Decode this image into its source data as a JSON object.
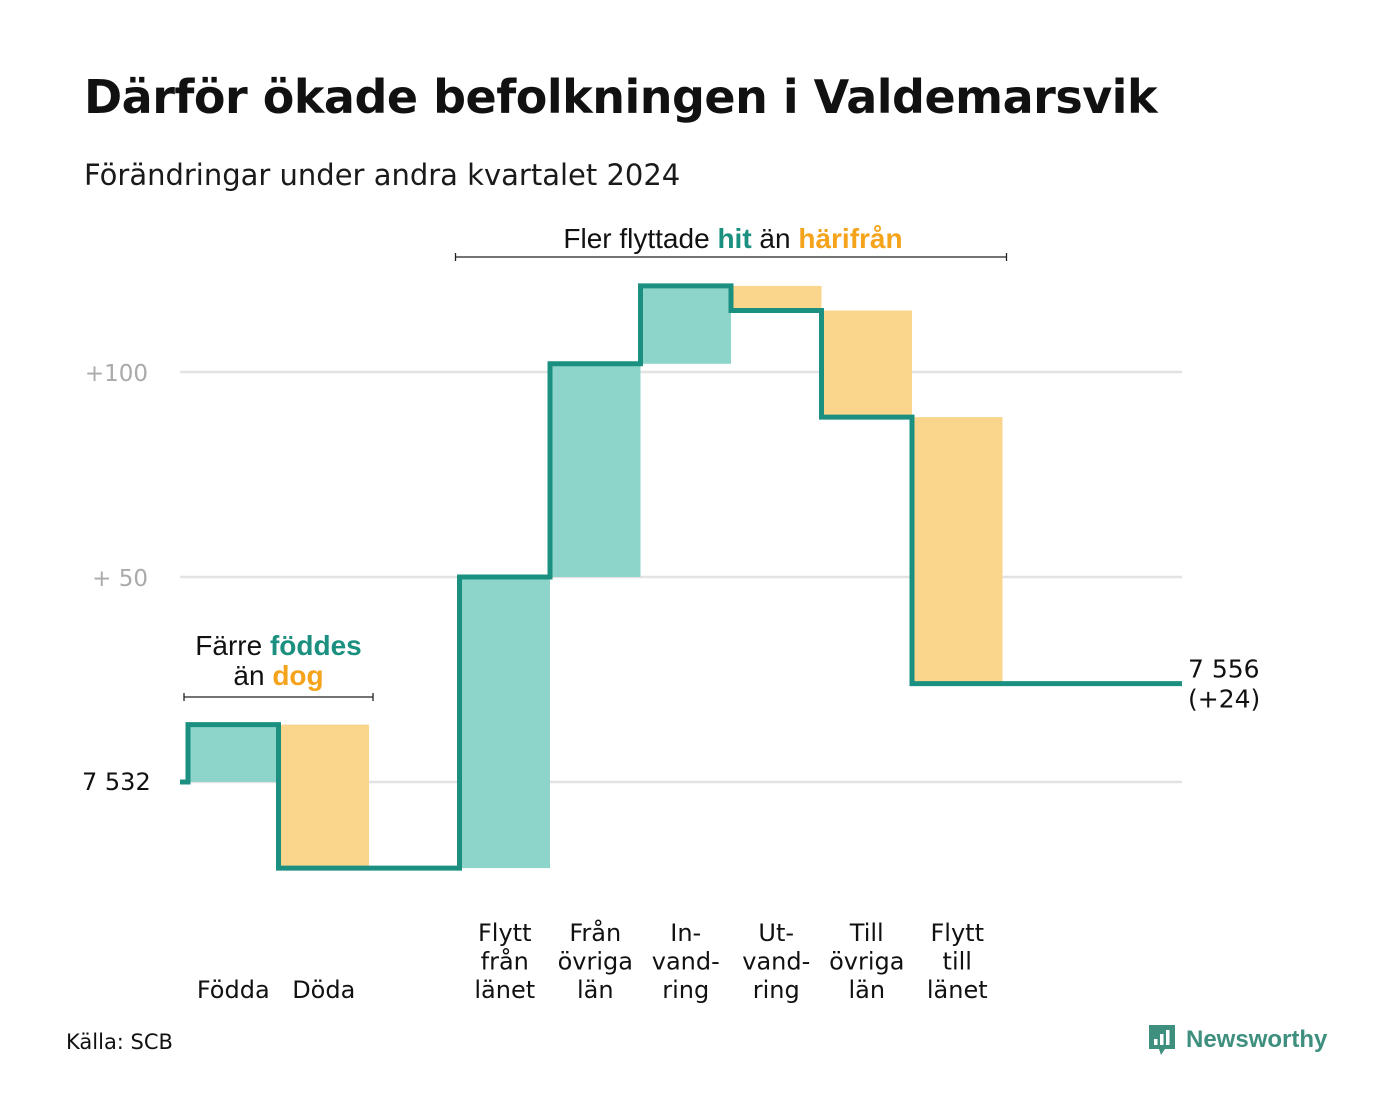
{
  "title": "Därför ökade befolkningen i Valdemarsvik",
  "subtitle": "Förändringar under andra kvartalet 2024",
  "source": "Källa: SCB",
  "brand": {
    "name": "Newsworthy",
    "icon": "newsworthy-logo-icon"
  },
  "colors": {
    "inflow": "#8dd5cb",
    "outflow": "#fad68c",
    "line": "#1b9080",
    "hit": "#1b9080",
    "harifran": "#f5a31a",
    "grid": "#e3e3e3",
    "tick": "#aaaaaa"
  },
  "chart_data": {
    "type": "waterfall",
    "base_value": 7532,
    "base_label": "7  532",
    "final_value": 7556,
    "final_labels": [
      "7 556",
      "(+24)"
    ],
    "ylim": [
      -21,
      123
    ],
    "yticks": [
      {
        "value": 100,
        "label": "+100"
      },
      {
        "value": 50,
        "label": "+  50"
      },
      {
        "value": 0,
        "label": ""
      }
    ],
    "steps": [
      {
        "name": "Födda",
        "label_lines": [
          "Födda"
        ],
        "delta": 14,
        "kind": "in"
      },
      {
        "name": "Döda",
        "label_lines": [
          "Döda"
        ],
        "delta": -35,
        "kind": "out"
      },
      {
        "name": "Flytt från länet",
        "label_lines": [
          "Flytt",
          "från",
          "länet"
        ],
        "delta": 71,
        "kind": "in"
      },
      {
        "name": "Från övriga län",
        "label_lines": [
          "Från",
          "övriga",
          "län"
        ],
        "delta": 52,
        "kind": "in"
      },
      {
        "name": "Invandring",
        "label_lines": [
          "In-",
          "vand-",
          "ring"
        ],
        "delta": 19,
        "kind": "in"
      },
      {
        "name": "Utvandring",
        "label_lines": [
          "Ut-",
          "vand-",
          "ring"
        ],
        "delta": -6,
        "kind": "out"
      },
      {
        "name": "Till övriga län",
        "label_lines": [
          "Till",
          "övriga",
          "län"
        ],
        "delta": -26,
        "kind": "out"
      },
      {
        "name": "Flytt till länet",
        "label_lines": [
          "Flytt",
          "till",
          "länet"
        ],
        "delta": -65,
        "kind": "out"
      }
    ],
    "annotations": [
      {
        "name": "births-deaths-annotation",
        "line1": [
          {
            "text": "Färre ",
            "style": "plain"
          },
          {
            "text": "föddes",
            "style": "hit"
          }
        ],
        "line2": [
          {
            "text": "än ",
            "style": "plain"
          },
          {
            "text": "dog",
            "style": "harifran"
          }
        ],
        "span_from": 0,
        "span_to": 1
      },
      {
        "name": "migration-annotation",
        "line1": [
          {
            "text": "Fler flyttade ",
            "style": "plain"
          },
          {
            "text": "hit",
            "style": "hit"
          },
          {
            "text": "  än ",
            "style": "plain"
          },
          {
            "text": "härifrån",
            "style": "harifran"
          }
        ],
        "span_from": 2,
        "span_to": 7
      }
    ]
  }
}
